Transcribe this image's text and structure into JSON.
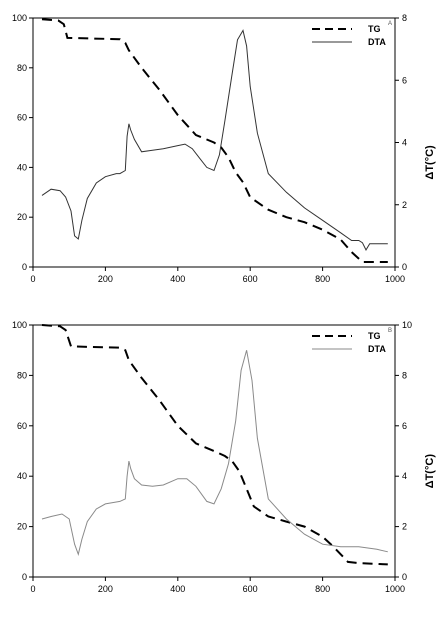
{
  "chart_data": [
    {
      "type": "line",
      "corner_label": "A",
      "xlim": [
        0,
        1000
      ],
      "ylim_left": [
        0,
        100
      ],
      "ylim_right": [
        0,
        8
      ],
      "x_ticks": [
        0,
        200,
        400,
        600,
        800,
        1000
      ],
      "y_left_ticks": [
        0,
        20,
        40,
        60,
        80,
        100
      ],
      "y_right_ticks": [
        0,
        2,
        4,
        6,
        8
      ],
      "ylabel_right": "ΔT(°C)",
      "grid": false,
      "legend_position": "top-right",
      "series": [
        {
          "name": "TG",
          "axis": "left",
          "style": "dashed",
          "x": [
            25,
            70,
            85,
            95,
            240,
            255,
            265,
            300,
            350,
            400,
            450,
            500,
            520,
            540,
            560,
            580,
            600,
            650,
            700,
            750,
            800,
            850,
            880,
            910,
            930,
            980
          ],
          "y": [
            99.5,
            99,
            97.5,
            92,
            91.5,
            90,
            87,
            80,
            71,
            61,
            53,
            50,
            48,
            44,
            38,
            34,
            28,
            23,
            20,
            18,
            15,
            11,
            6,
            2,
            2,
            2
          ]
        },
        {
          "name": "DTA",
          "axis": "right",
          "style": "solid",
          "x": [
            25,
            50,
            75,
            90,
            105,
            115,
            125,
            135,
            150,
            175,
            200,
            230,
            240,
            255,
            260,
            265,
            270,
            280,
            300,
            330,
            360,
            400,
            420,
            440,
            460,
            480,
            500,
            515,
            530,
            550,
            565,
            580,
            590,
            600,
            620,
            650,
            700,
            750,
            800,
            850,
            880,
            900,
            910,
            920,
            930,
            950,
            980
          ],
          "y": [
            2.3,
            2.5,
            2.45,
            2.25,
            1.8,
            1.0,
            0.9,
            1.5,
            2.2,
            2.7,
            2.9,
            3.0,
            3.0,
            3.1,
            4.2,
            4.6,
            4.4,
            4.1,
            3.7,
            3.75,
            3.8,
            3.9,
            3.95,
            3.8,
            3.5,
            3.2,
            3.1,
            3.6,
            4.7,
            6.2,
            7.3,
            7.6,
            7.1,
            5.8,
            4.3,
            3.0,
            2.4,
            1.9,
            1.5,
            1.1,
            0.85,
            0.85,
            0.78,
            0.55,
            0.75,
            0.75,
            0.75
          ]
        }
      ]
    },
    {
      "type": "line",
      "corner_label": "B",
      "xlim": [
        0,
        1000
      ],
      "ylim_left": [
        0,
        100
      ],
      "ylim_right": [
        0,
        10
      ],
      "x_ticks": [
        0,
        200,
        400,
        600,
        800,
        1000
      ],
      "y_left_ticks": [
        0,
        20,
        40,
        60,
        80,
        100
      ],
      "y_right_ticks": [
        0,
        2,
        4,
        6,
        8,
        10
      ],
      "ylabel_right": "ΔT(°C)",
      "grid": false,
      "legend_position": "top-right",
      "series": [
        {
          "name": "TG",
          "axis": "left",
          "style": "dashed",
          "x": [
            25,
            75,
            90,
            105,
            240,
            255,
            265,
            300,
            350,
            400,
            450,
            500,
            530,
            550,
            570,
            590,
            610,
            650,
            700,
            750,
            800,
            830,
            850,
            870,
            900,
            980
          ],
          "y": [
            100,
            99.5,
            98,
            91.5,
            91,
            90,
            86,
            79,
            70,
            60,
            53,
            50,
            48,
            46,
            42,
            35,
            28,
            24,
            22,
            20,
            16,
            12,
            9,
            6,
            5.5,
            5
          ]
        },
        {
          "name": "DTA",
          "axis": "right",
          "style": "solid",
          "x": [
            25,
            50,
            80,
            100,
            115,
            125,
            135,
            150,
            175,
            200,
            240,
            255,
            260,
            265,
            270,
            280,
            300,
            330,
            360,
            400,
            425,
            450,
            480,
            500,
            520,
            540,
            560,
            575,
            590,
            605,
            620,
            650,
            700,
            750,
            800,
            850,
            900,
            950,
            980
          ],
          "y": [
            2.3,
            2.4,
            2.5,
            2.3,
            1.3,
            0.9,
            1.5,
            2.2,
            2.7,
            2.9,
            3.0,
            3.1,
            4.0,
            4.6,
            4.3,
            3.9,
            3.65,
            3.6,
            3.65,
            3.9,
            3.9,
            3.6,
            3.0,
            2.9,
            3.5,
            4.5,
            6.2,
            8.2,
            9.0,
            7.8,
            5.5,
            3.1,
            2.3,
            1.7,
            1.3,
            1.2,
            1.2,
            1.1,
            1.0
          ]
        }
      ]
    }
  ]
}
